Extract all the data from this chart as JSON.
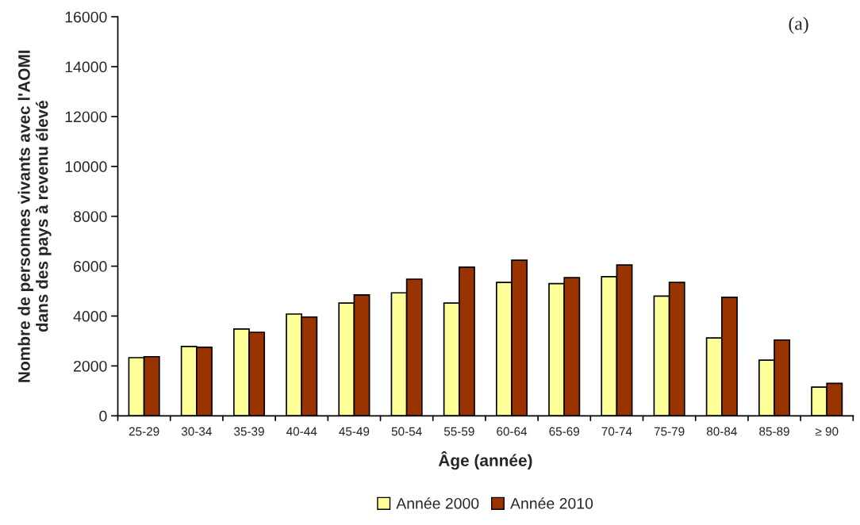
{
  "chart_data": {
    "type": "bar",
    "xlabel": "Âge (année)",
    "ylabel": "Nombre de personnes vivants avec l'AOMI\ndans des pays à revenu élevé",
    "annotations": [
      "(a)"
    ],
    "categories": [
      "25-29",
      "30-34",
      "35-39",
      "40-44",
      "45-49",
      "50-54",
      "55-59",
      "60-64",
      "65-69",
      "70-74",
      "75-79",
      "80-84",
      "85-89",
      "≥ 90"
    ],
    "series": [
      {
        "name": "Année 2000",
        "color": "#ffff99",
        "values": [
          2330,
          2780,
          3480,
          4080,
          4520,
          4930,
          4520,
          5350,
          5300,
          5580,
          4800,
          3120,
          2230,
          1150
        ]
      },
      {
        "name": "Année 2010",
        "color": "#993300",
        "values": [
          2370,
          2750,
          3350,
          3960,
          4850,
          5480,
          5960,
          6240,
          5540,
          6050,
          5350,
          4750,
          3040,
          1300
        ]
      }
    ],
    "ylim": [
      0,
      16000
    ],
    "yticks": [
      0,
      2000,
      4000,
      6000,
      8000,
      10000,
      12000,
      14000,
      16000
    ],
    "grid": false,
    "legend": "bottom"
  }
}
